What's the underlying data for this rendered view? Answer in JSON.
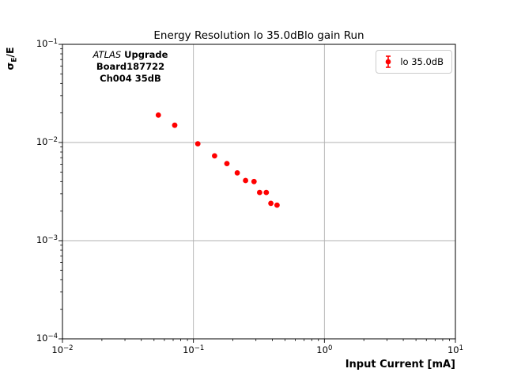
{
  "figure": {
    "title": "Energy Resolution lo 35.0dBlo gain Run",
    "xlabel": "Input Current [mA]",
    "ylabel_parts": {
      "sigma": "σ",
      "sub": "E",
      "rest": "/E"
    },
    "annotation": {
      "line1_italic": "ATLAS",
      "line1_bold": " Upgrade",
      "line2": "Board187722",
      "line3": "Ch004 35dB"
    },
    "legend": {
      "label": "lo 35.0dB",
      "marker": "red-errorbar-point"
    }
  },
  "chart_data": {
    "type": "scatter",
    "title": "Energy Resolution lo 35.0dBlo gain Run",
    "xlabel": "Input Current [mA]",
    "ylabel": "σ_E/E",
    "x_scale": "log",
    "y_scale": "log",
    "xlim": [
      0.01,
      10
    ],
    "ylim": [
      0.0001,
      0.1
    ],
    "x_tick_exponents": [
      -2,
      -1,
      0,
      1
    ],
    "y_tick_exponents": [
      -1,
      -2,
      -3,
      -4
    ],
    "grid": true,
    "legend_position": "upper right",
    "legend_entries": [
      "lo 35.0dB"
    ],
    "marker_color": "#ff0000",
    "grid_color": "#b0b0b0",
    "points": [
      {
        "x": 0.054,
        "y": 0.019
      },
      {
        "x": 0.072,
        "y": 0.015
      },
      {
        "x": 0.108,
        "y": 0.0097
      },
      {
        "x": 0.145,
        "y": 0.0073
      },
      {
        "x": 0.18,
        "y": 0.0061
      },
      {
        "x": 0.216,
        "y": 0.0049
      },
      {
        "x": 0.25,
        "y": 0.0041
      },
      {
        "x": 0.29,
        "y": 0.004
      },
      {
        "x": 0.32,
        "y": 0.0031
      },
      {
        "x": 0.36,
        "y": 0.0031
      },
      {
        "x": 0.39,
        "y": 0.0024
      },
      {
        "x": 0.435,
        "y": 0.0023
      }
    ]
  }
}
